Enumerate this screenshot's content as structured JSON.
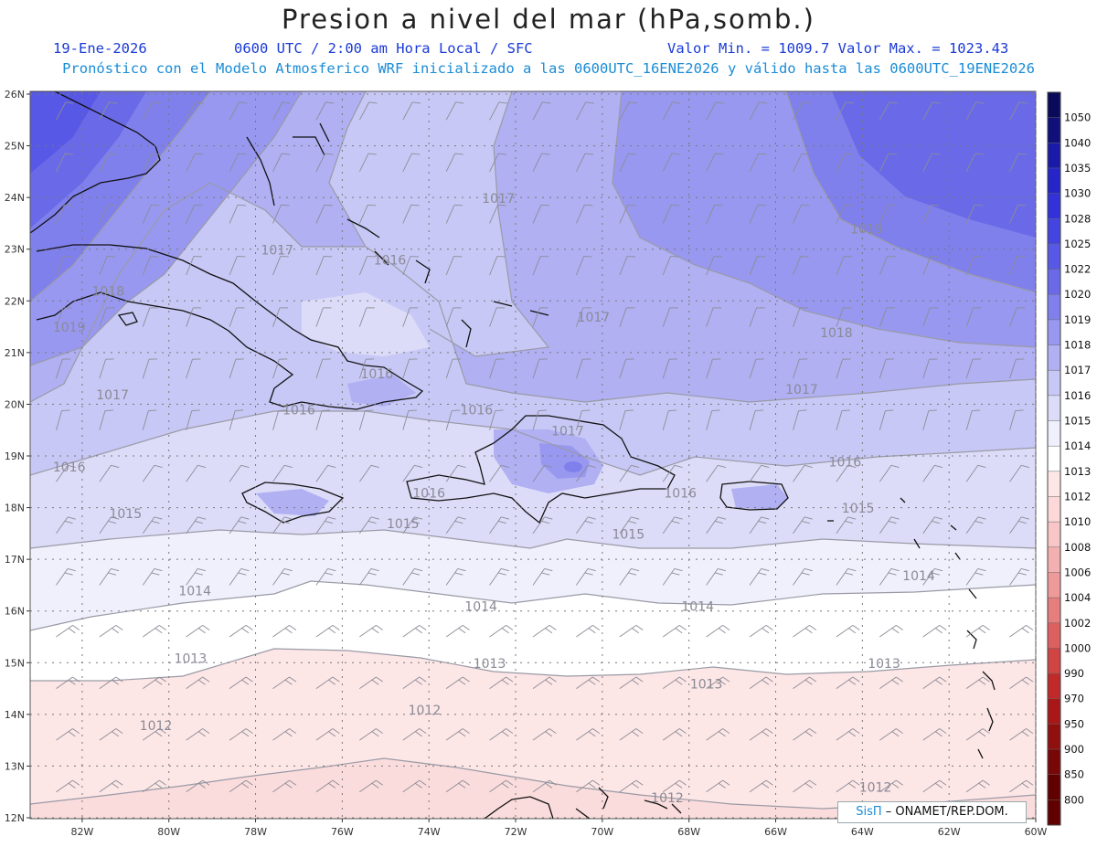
{
  "header": {
    "title": "Presion a nivel del mar (hPa,somb.)",
    "date": "19-Ene-2026",
    "time": "0600 UTC / 2:00 am Hora Local / SFC",
    "min_max": "Valor Min. = 1009.7  Valor Max. = 1023.43",
    "model_line": "Pronóstico con el Modelo Atmosferico WRF inicializado a las 0600UTC_16ENE2026 y válido hasta las  0600UTC_19ENE2026"
  },
  "credit": {
    "sis": "SisΠ",
    "text": "– ONAMET/REP.DOM."
  },
  "axes": {
    "lat_labels": [
      "26N",
      "25N",
      "24N",
      "23N",
      "22N",
      "21N",
      "20N",
      "19N",
      "18N",
      "17N",
      "16N",
      "15N",
      "14N",
      "13N",
      "12N"
    ],
    "lon_labels": [
      "82W",
      "80W",
      "78W",
      "76W",
      "74W",
      "72W",
      "70W",
      "68W",
      "66W",
      "64W",
      "62W",
      "60W"
    ]
  },
  "colorbar": {
    "levels": [
      "1050",
      "1040",
      "1035",
      "1030",
      "1028",
      "1025",
      "1022",
      "1020",
      "1019",
      "1018",
      "1017",
      "1016",
      "1015",
      "1014",
      "1013",
      "1012",
      "1010",
      "1008",
      "1006",
      "1004",
      "1002",
      "1000",
      "990",
      "970",
      "950",
      "900",
      "850",
      "800"
    ],
    "colors": [
      "#0a0a5a",
      "#10107a",
      "#1a1aa8",
      "#2525c8",
      "#3232d8",
      "#4444e0",
      "#5858e6",
      "#6a6ae8",
      "#8080ec",
      "#9898f0",
      "#b0b0f3",
      "#c8c8f6",
      "#dcdcf9",
      "#f0f0fc",
      "#ffffff",
      "#fde6e6",
      "#fcd8d8",
      "#f8c6c6",
      "#f3b0b0",
      "#ee9a9a",
      "#e67e7e",
      "#dc6060",
      "#d04444",
      "#c02a2a",
      "#a81818",
      "#901010",
      "#780808",
      "#600000"
    ]
  },
  "contour_labels": [
    {
      "text": "1017",
      "lon": -72.4,
      "lat": 23.9
    },
    {
      "text": "1019",
      "lon": -63.9,
      "lat": 23.3
    },
    {
      "text": "1017",
      "lon": -77.5,
      "lat": 22.9
    },
    {
      "text": "1016",
      "lon": -74.9,
      "lat": 22.7
    },
    {
      "text": "1018",
      "lon": -81.4,
      "lat": 22.1
    },
    {
      "text": "1019",
      "lon": -82.3,
      "lat": 21.4
    },
    {
      "text": "1017",
      "lon": -70.2,
      "lat": 21.6
    },
    {
      "text": "1018",
      "lon": -64.6,
      "lat": 21.3
    },
    {
      "text": "1016",
      "lon": -75.2,
      "lat": 20.5
    },
    {
      "text": "1017",
      "lon": -81.3,
      "lat": 20.1
    },
    {
      "text": "1017",
      "lon": -65.4,
      "lat": 20.2
    },
    {
      "text": "1016",
      "lon": -77.0,
      "lat": 19.8
    },
    {
      "text": "1016",
      "lon": -72.9,
      "lat": 19.8
    },
    {
      "text": "1017",
      "lon": -70.8,
      "lat": 19.4
    },
    {
      "text": "1016",
      "lon": -82.3,
      "lat": 18.7
    },
    {
      "text": "1016",
      "lon": -64.4,
      "lat": 18.8
    },
    {
      "text": "1016",
      "lon": -74.0,
      "lat": 18.2
    },
    {
      "text": "1016",
      "lon": -68.2,
      "lat": 18.2
    },
    {
      "text": "1015",
      "lon": -81.0,
      "lat": 17.8
    },
    {
      "text": "1015",
      "lon": -64.1,
      "lat": 17.9
    },
    {
      "text": "1015",
      "lon": -74.6,
      "lat": 17.6
    },
    {
      "text": "1015",
      "lon": -69.4,
      "lat": 17.4
    },
    {
      "text": "1014",
      "lon": -62.7,
      "lat": 16.6
    },
    {
      "text": "1014",
      "lon": -79.4,
      "lat": 16.3
    },
    {
      "text": "1014",
      "lon": -72.8,
      "lat": 16.0
    },
    {
      "text": "1014",
      "lon": -67.8,
      "lat": 16.0
    },
    {
      "text": "1013",
      "lon": -79.5,
      "lat": 15.0
    },
    {
      "text": "1013",
      "lon": -72.6,
      "lat": 14.9
    },
    {
      "text": "1013",
      "lon": -63.5,
      "lat": 14.9
    },
    {
      "text": "1013",
      "lon": -67.6,
      "lat": 14.5
    },
    {
      "text": "1012",
      "lon": -74.1,
      "lat": 14.0
    },
    {
      "text": "1012",
      "lon": -80.3,
      "lat": 13.7
    },
    {
      "text": "1012",
      "lon": -68.5,
      "lat": 12.3
    },
    {
      "text": "1012",
      "lon": -63.7,
      "lat": 12.5
    }
  ]
}
